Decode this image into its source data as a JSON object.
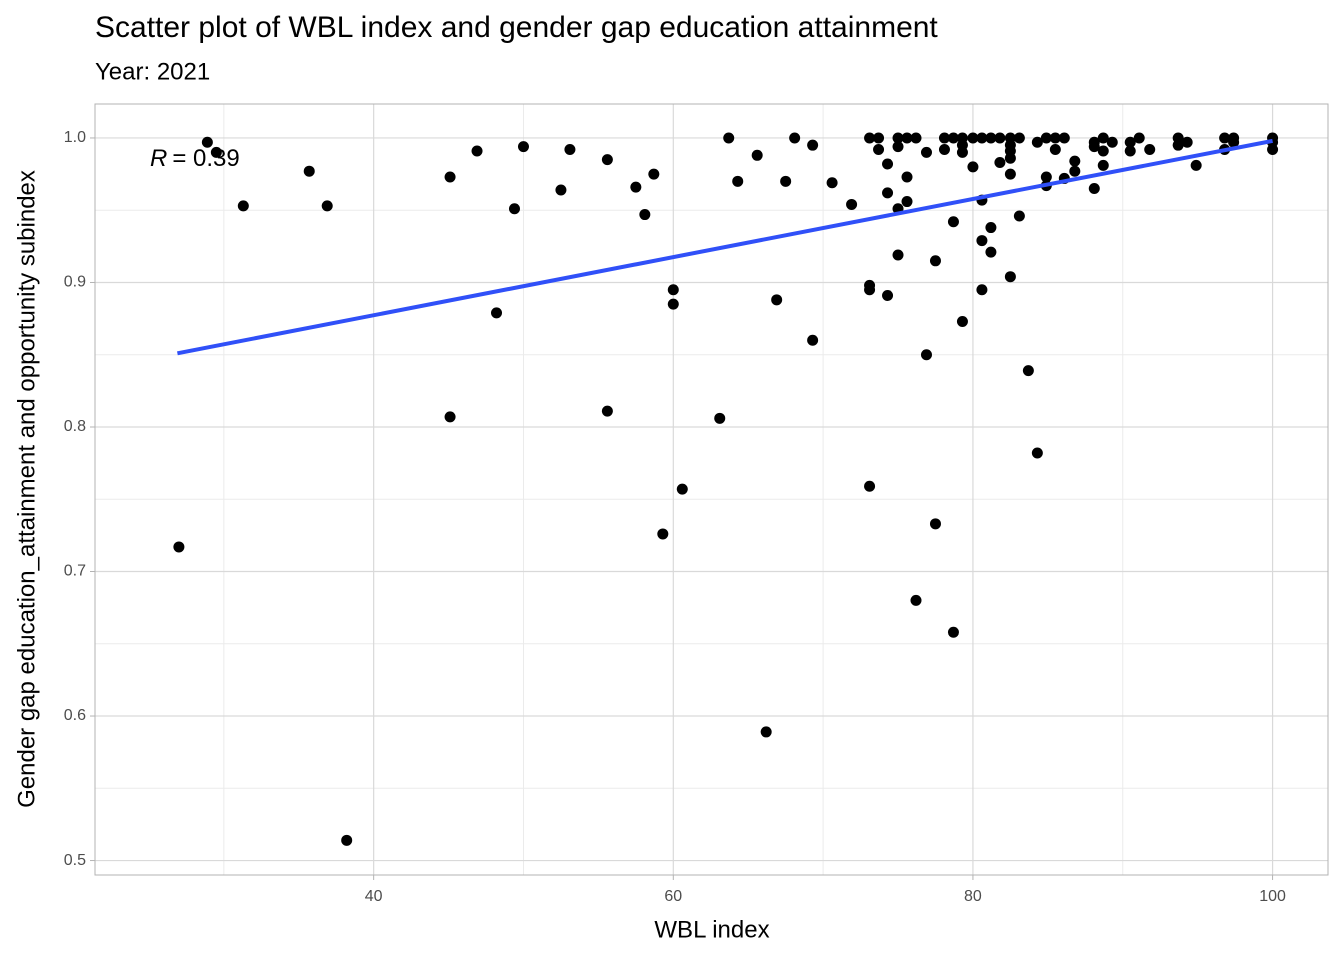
{
  "chart_data": {
    "type": "scatter",
    "title": "Scatter plot of WBL index and gender gap education attainment",
    "subtitle": "Year: 2021",
    "x_label": "WBL index",
    "y_label": "Gender gap education_attainment and opportunity subindex",
    "annotation": {
      "symbol": "R",
      "text": "= 0.39"
    },
    "color": "#000000",
    "x": [
      27.0,
      28.9,
      29.5,
      31.3,
      35.7,
      36.9,
      38.2,
      45.1,
      45.1,
      46.9,
      48.2,
      49.4,
      50.0,
      52.5,
      53.1,
      55.6,
      55.6,
      57.5,
      58.1,
      58.7,
      59.3,
      60.0,
      60.0,
      60.6,
      63.1,
      63.7,
      64.3,
      65.6,
      66.2,
      66.9,
      67.5,
      68.1,
      69.3,
      69.3,
      70.6,
      71.9,
      73.1,
      73.1,
      73.1,
      73.1,
      73.7,
      73.7,
      74.3,
      74.3,
      74.3,
      75.0,
      75.0,
      75.0,
      75.0,
      75.6,
      75.6,
      75.6,
      76.2,
      76.2,
      76.9,
      76.9,
      77.5,
      77.5,
      78.1,
      78.1,
      78.7,
      78.7,
      78.7,
      79.3,
      79.3,
      79.3,
      79.3,
      80.0,
      80.0,
      80.6,
      80.6,
      80.6,
      80.6,
      81.2,
      81.2,
      81.2,
      81.8,
      81.8,
      82.5,
      82.5,
      82.5,
      82.5,
      82.5,
      82.5,
      83.1,
      83.1,
      83.7,
      84.3,
      84.3,
      84.9,
      84.9,
      84.9,
      85.5,
      85.5,
      86.1,
      86.1,
      86.8,
      86.8,
      88.1,
      88.1,
      88.1,
      88.7,
      88.7,
      88.7,
      89.3,
      90.5,
      90.5,
      91.1,
      91.8,
      93.7,
      93.7,
      94.3,
      94.9,
      96.8,
      96.8,
      97.4,
      97.4,
      100,
      100,
      100
    ],
    "values": [
      0.717,
      0.997,
      0.99,
      0.953,
      0.977,
      0.953,
      0.514,
      0.973,
      0.807,
      0.991,
      0.879,
      0.951,
      0.994,
      0.964,
      0.992,
      0.985,
      0.811,
      0.966,
      0.947,
      0.975,
      0.726,
      0.895,
      0.885,
      0.757,
      0.806,
      1.0,
      0.97,
      0.988,
      0.589,
      0.888,
      0.97,
      1.0,
      0.86,
      0.995,
      0.969,
      0.954,
      1.0,
      0.898,
      0.895,
      0.759,
      1.0,
      0.992,
      0.982,
      0.962,
      0.891,
      1.0,
      0.994,
      0.951,
      0.919,
      1.0,
      0.973,
      0.956,
      1.0,
      0.68,
      0.99,
      0.85,
      0.915,
      0.733,
      1.0,
      0.992,
      1.0,
      0.942,
      0.658,
      1.0,
      0.995,
      0.99,
      0.873,
      1.0,
      0.98,
      1.0,
      0.957,
      0.929,
      0.895,
      1.0,
      0.938,
      0.921,
      1.0,
      0.983,
      1.0,
      0.995,
      0.991,
      0.986,
      0.975,
      0.904,
      1.0,
      0.946,
      0.839,
      0.782,
      0.997,
      1.0,
      0.973,
      0.967,
      1.0,
      0.992,
      1.0,
      0.972,
      0.984,
      0.977,
      0.997,
      0.994,
      0.965,
      1.0,
      0.991,
      0.981,
      0.997,
      0.997,
      0.991,
      1.0,
      0.992,
      1.0,
      0.995,
      0.997,
      0.981,
      1.0,
      0.992,
      0.997,
      1.0,
      1.0,
      0.997,
      0.992
    ],
    "trendline": {
      "color": "#3050f8",
      "x": [
        26.9,
        100
      ],
      "y": [
        0.851,
        0.998
      ]
    },
    "xlim": [
      21.4,
      103.7
    ],
    "ylim": [
      0.49,
      1.0235
    ],
    "xticks": [
      40,
      60,
      80,
      100
    ],
    "yticks": [
      0.5,
      0.6,
      0.7,
      0.8,
      0.9,
      {
        "value": 1,
        "label": "1.0"
      }
    ],
    "xticks_minor": [
      30,
      50,
      70,
      90
    ],
    "yticks_minor": [
      0.55,
      0.65,
      0.75,
      0.85,
      0.95
    ],
    "grid": true
  }
}
